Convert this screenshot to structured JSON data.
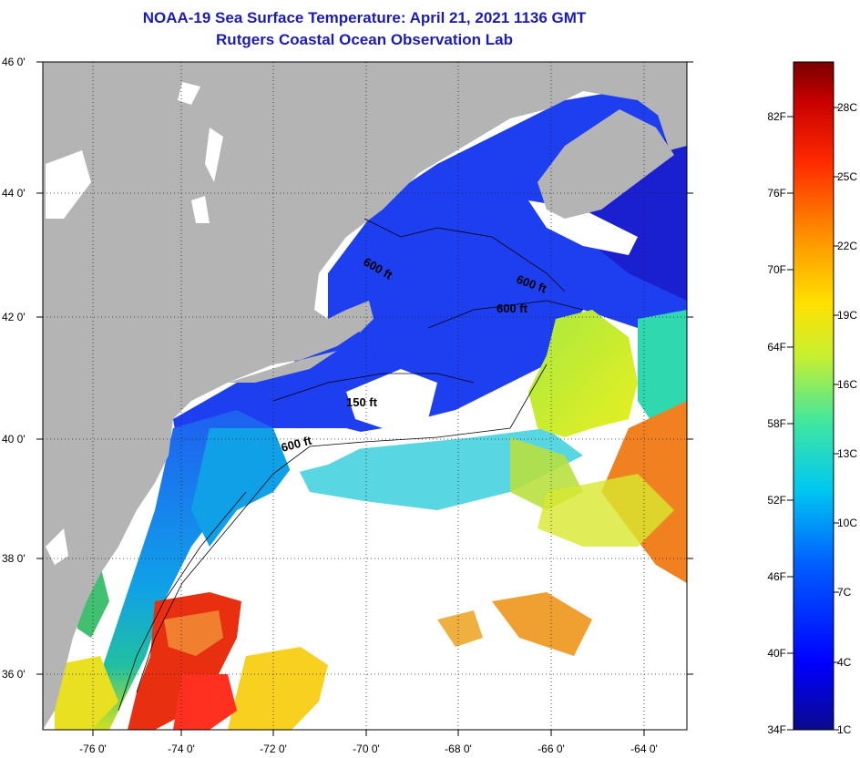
{
  "title": "NOAA-19 Sea Surface Temperature:  April 21, 2021 1136 GMT",
  "subtitle": "Rutgers Coastal Ocean Observation Lab",
  "map": {
    "lat_labels": [
      "46 0'",
      "44 0'",
      "42 0'",
      "40 0'",
      "38 0'",
      "36 0'"
    ],
    "lon_labels": [
      "-76 0'",
      "-74 0'",
      "-72 0'",
      "-70 0'",
      "-68 0'",
      "-66 0'",
      "-64 0'"
    ],
    "contour_labels": [
      "600 ft",
      "600 ft",
      "600 ft",
      "150 ft",
      "600 ft"
    ],
    "colors": {
      "land": "#b4b4b4",
      "cloud": "#ffffff",
      "cold": "#1e2ee6",
      "warm": "#f0641e"
    }
  },
  "colorbar": {
    "fahrenheit": [
      "82F",
      "76F",
      "70F",
      "64F",
      "58F",
      "52F",
      "46F",
      "40F",
      "34F"
    ],
    "celsius": [
      "28C",
      "25C",
      "22C",
      "19C",
      "16C",
      "13C",
      "10C",
      "7C",
      "4C",
      "1C"
    ]
  }
}
